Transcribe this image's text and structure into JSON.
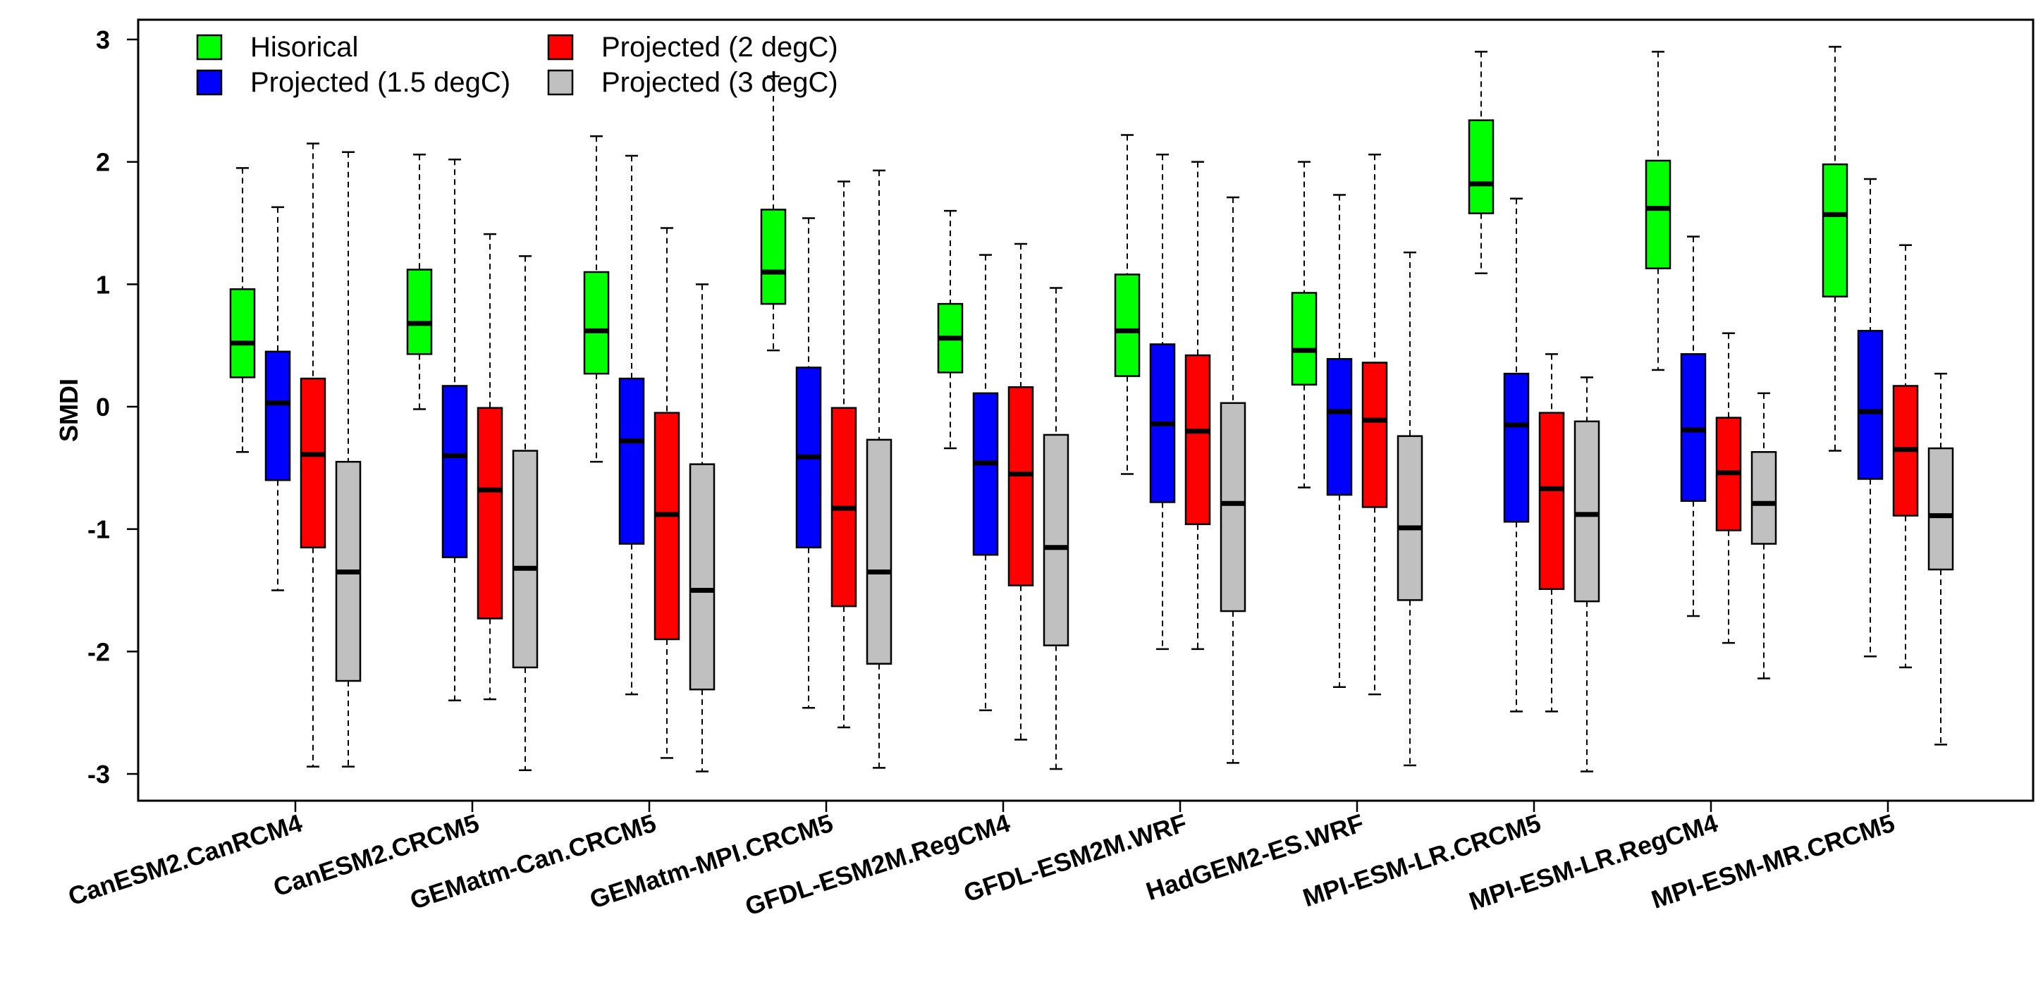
{
  "chart_data": {
    "type": "boxplot",
    "title": "",
    "xlabel": "",
    "ylabel": "SMDI",
    "ylim": [
      -3.3,
      3.15
    ],
    "yticks": [
      -3,
      -2,
      -1,
      0,
      1,
      2,
      3
    ],
    "ytick_labels": [
      "-3",
      "-2",
      "-1",
      "0",
      "1",
      "2",
      "3"
    ],
    "grid": false,
    "legend_position": "top-left",
    "categories": [
      "CanESM2.CanRCM4",
      "CanESM2.CRCM5",
      "GEMatm-Can.CRCM5",
      "GEMatm-MPI.CRCM5",
      "GFDL-ESM2M.RegCM4",
      "GFDL-ESM2M.WRF",
      "HadGEM2-ES.WRF",
      "MPI-ESM-LR.CRCM5",
      "MPI-ESM-LR.RegCM4",
      "MPI-ESM-MR.CRCM5"
    ],
    "series": [
      {
        "name": "Hisorical",
        "color": "#00ff00",
        "boxes": [
          {
            "whislo": -0.37,
            "q1": 0.24,
            "med": 0.52,
            "q3": 0.96,
            "whishi": 1.95
          },
          {
            "whislo": -0.02,
            "q1": 0.43,
            "med": 0.68,
            "q3": 1.12,
            "whishi": 2.06
          },
          {
            "whislo": -0.45,
            "q1": 0.27,
            "med": 0.62,
            "q3": 1.1,
            "whishi": 2.21
          },
          {
            "whislo": 0.46,
            "q1": 0.84,
            "med": 1.1,
            "q3": 1.61,
            "whishi": 2.7
          },
          {
            "whislo": -0.34,
            "q1": 0.28,
            "med": 0.56,
            "q3": 0.84,
            "whishi": 1.6
          },
          {
            "whislo": -0.55,
            "q1": 0.25,
            "med": 0.62,
            "q3": 1.08,
            "whishi": 2.22
          },
          {
            "whislo": -0.66,
            "q1": 0.18,
            "med": 0.46,
            "q3": 0.93,
            "whishi": 2.0
          },
          {
            "whislo": 1.09,
            "q1": 1.58,
            "med": 1.82,
            "q3": 2.34,
            "whishi": 2.9
          },
          {
            "whislo": 0.3,
            "q1": 1.13,
            "med": 1.62,
            "q3": 2.01,
            "whishi": 2.9
          },
          {
            "whislo": -0.36,
            "q1": 0.9,
            "med": 1.57,
            "q3": 1.98,
            "whishi": 2.94
          }
        ]
      },
      {
        "name": "Projected (1.5 degC)",
        "color": "#0000ff",
        "boxes": [
          {
            "whislo": -1.5,
            "q1": -0.6,
            "med": 0.03,
            "q3": 0.45,
            "whishi": 1.63
          },
          {
            "whislo": -2.4,
            "q1": -1.23,
            "med": -0.4,
            "q3": 0.17,
            "whishi": 2.02
          },
          {
            "whislo": -2.35,
            "q1": -1.12,
            "med": -0.28,
            "q3": 0.23,
            "whishi": 2.05
          },
          {
            "whislo": -2.46,
            "q1": -1.15,
            "med": -0.41,
            "q3": 0.32,
            "whishi": 1.54
          },
          {
            "whislo": -2.48,
            "q1": -1.21,
            "med": -0.46,
            "q3": 0.11,
            "whishi": 1.24
          },
          {
            "whislo": -1.98,
            "q1": -0.78,
            "med": -0.14,
            "q3": 0.51,
            "whishi": 2.06
          },
          {
            "whislo": -2.29,
            "q1": -0.72,
            "med": -0.04,
            "q3": 0.39,
            "whishi": 1.73
          },
          {
            "whislo": -2.49,
            "q1": -0.94,
            "med": -0.15,
            "q3": 0.27,
            "whishi": 1.7
          },
          {
            "whislo": -1.71,
            "q1": -0.77,
            "med": -0.19,
            "q3": 0.43,
            "whishi": 1.39
          },
          {
            "whislo": -2.04,
            "q1": -0.59,
            "med": -0.04,
            "q3": 0.62,
            "whishi": 1.86
          }
        ]
      },
      {
        "name": "Projected (2 degC)",
        "color": "#ff0000",
        "boxes": [
          {
            "whislo": -2.94,
            "q1": -1.15,
            "med": -0.39,
            "q3": 0.23,
            "whishi": 2.15
          },
          {
            "whislo": -2.39,
            "q1": -1.73,
            "med": -0.68,
            "q3": -0.01,
            "whishi": 1.41
          },
          {
            "whislo": -2.87,
            "q1": -1.9,
            "med": -0.88,
            "q3": -0.05,
            "whishi": 1.46
          },
          {
            "whislo": -2.62,
            "q1": -1.63,
            "med": -0.83,
            "q3": -0.01,
            "whishi": 1.84
          },
          {
            "whislo": -2.72,
            "q1": -1.46,
            "med": -0.55,
            "q3": 0.16,
            "whishi": 1.33
          },
          {
            "whislo": -1.98,
            "q1": -0.96,
            "med": -0.2,
            "q3": 0.42,
            "whishi": 2.0
          },
          {
            "whislo": -2.35,
            "q1": -0.82,
            "med": -0.11,
            "q3": 0.36,
            "whishi": 2.06
          },
          {
            "whislo": -2.49,
            "q1": -1.49,
            "med": -0.67,
            "q3": -0.05,
            "whishi": 0.43
          },
          {
            "whislo": -1.93,
            "q1": -1.01,
            "med": -0.54,
            "q3": -0.09,
            "whishi": 0.6
          },
          {
            "whislo": -2.13,
            "q1": -0.89,
            "med": -0.35,
            "q3": 0.17,
            "whishi": 1.32
          }
        ]
      },
      {
        "name": "Projected (3 degC)",
        "color": "#c0c0c0",
        "boxes": [
          {
            "whislo": -2.94,
            "q1": -2.24,
            "med": -1.35,
            "q3": -0.45,
            "whishi": 2.08
          },
          {
            "whislo": -2.97,
            "q1": -2.13,
            "med": -1.32,
            "q3": -0.36,
            "whishi": 1.23
          },
          {
            "whislo": -2.98,
            "q1": -2.31,
            "med": -1.5,
            "q3": -0.47,
            "whishi": 1.0
          },
          {
            "whislo": -2.95,
            "q1": -2.1,
            "med": -1.35,
            "q3": -0.27,
            "whishi": 1.93
          },
          {
            "whislo": -2.96,
            "q1": -1.95,
            "med": -1.15,
            "q3": -0.23,
            "whishi": 0.97
          },
          {
            "whislo": -2.91,
            "q1": -1.67,
            "med": -0.79,
            "q3": 0.03,
            "whishi": 1.71
          },
          {
            "whislo": -2.93,
            "q1": -1.58,
            "med": -0.99,
            "q3": -0.24,
            "whishi": 1.26
          },
          {
            "whislo": -2.98,
            "q1": -1.59,
            "med": -0.88,
            "q3": -0.12,
            "whishi": 0.24
          },
          {
            "whislo": -2.22,
            "q1": -1.12,
            "med": -0.79,
            "q3": -0.37,
            "whishi": 0.11
          },
          {
            "whislo": -2.76,
            "q1": -1.33,
            "med": -0.89,
            "q3": -0.34,
            "whishi": 0.27
          }
        ]
      }
    ]
  }
}
